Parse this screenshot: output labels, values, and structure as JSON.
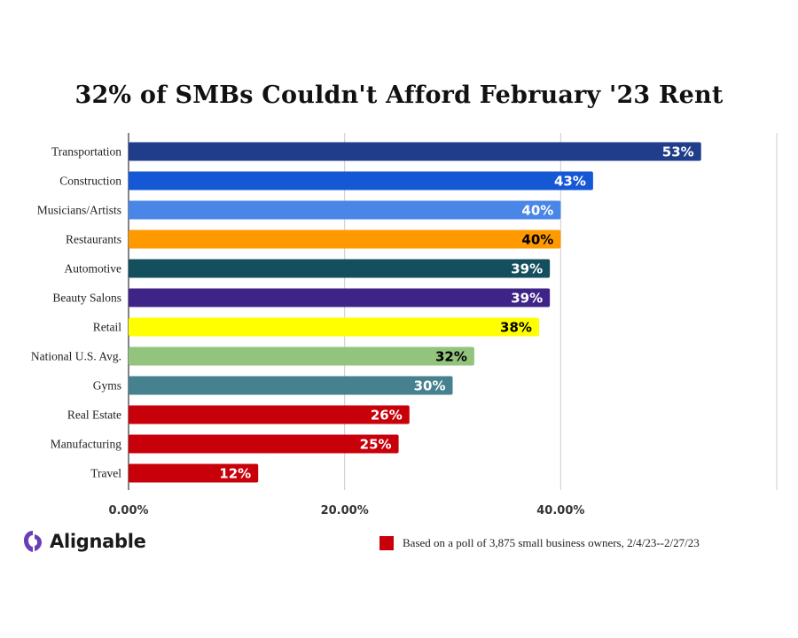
{
  "chart_data": {
    "type": "bar",
    "orientation": "horizontal",
    "title": "32% of SMBs Couldn't Afford February '23 Rent",
    "categories": [
      "Transportation",
      "Construction",
      "Musicians/Artists",
      "Restaurants",
      "Automotive",
      "Beauty Salons",
      "Retail",
      "National U.S. Avg.",
      "Gyms",
      "Real Estate",
      "Manufacturing",
      "Travel"
    ],
    "values": [
      53,
      43,
      40,
      40,
      39,
      39,
      38,
      32,
      30,
      26,
      25,
      12
    ],
    "value_labels": [
      "53%",
      "43%",
      "40%",
      "40%",
      "39%",
      "39%",
      "38%",
      "32%",
      "30%",
      "26%",
      "25%",
      "12%"
    ],
    "bar_colors": [
      "#1f3d8a",
      "#1558d6",
      "#4a86e8",
      "#ff9900",
      "#134f5c",
      "#3d2486",
      "#ffff00",
      "#93c47d",
      "#45818e",
      "#c8000a",
      "#c8000a",
      "#c8000a"
    ],
    "label_colors": [
      "#ffffff",
      "#ffffff",
      "#ffffff",
      "#000000",
      "#ffffff",
      "#ffffff",
      "#000000",
      "#000000",
      "#ffffff",
      "#ffffff",
      "#ffffff",
      "#ffffff"
    ],
    "x_ticks": [
      0,
      20,
      40,
      60
    ],
    "x_tick_labels": [
      "0.00%",
      "20.00%",
      "40.00%",
      ""
    ],
    "xlim": [
      0,
      60
    ],
    "xlabel": "",
    "ylabel": "",
    "grid": true
  },
  "footer": {
    "brand": "Alignable",
    "brand_color": "#6a3fb5",
    "note_swatch_color": "#c8000a",
    "note": "Based on a poll of 3,875 small business owners, 2/4/23--2/27/23"
  }
}
